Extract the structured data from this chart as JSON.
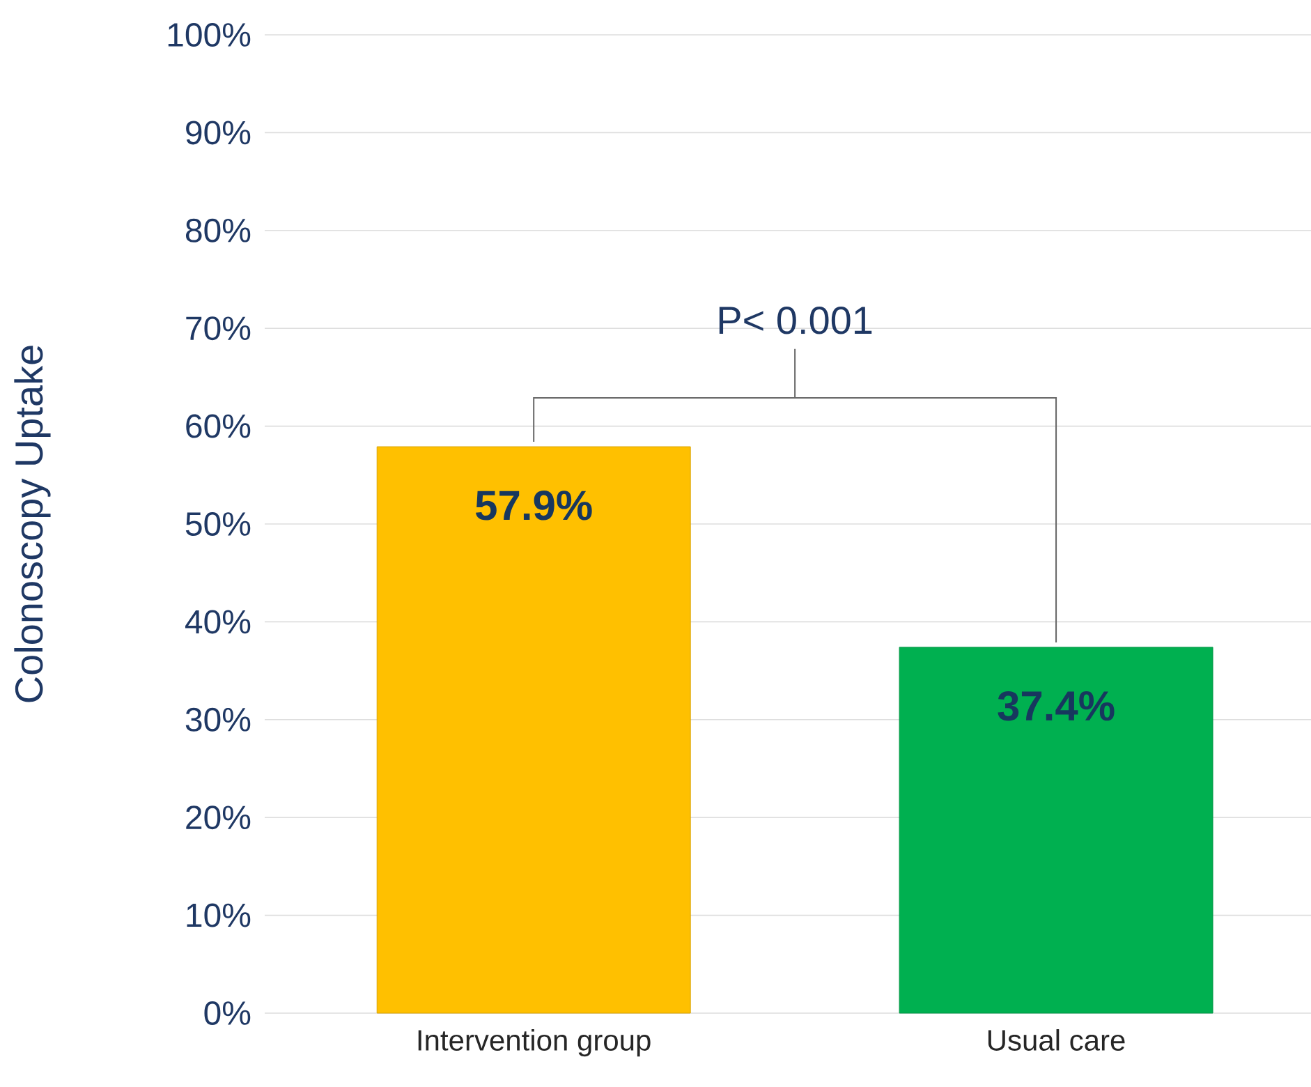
{
  "chart_data": {
    "type": "bar",
    "ylabel": "Colonoscopy Uptake",
    "categories": [
      "Intervention group",
      "Usual care"
    ],
    "values": [
      57.9,
      37.4
    ],
    "colors": [
      "#ffc000",
      "#00b050"
    ],
    "value_labels": [
      "57.9%",
      "37.4%"
    ],
    "ylim": [
      0,
      100
    ],
    "yticks": [
      {
        "value": 0,
        "label": "0%"
      },
      {
        "value": 10,
        "label": "10%"
      },
      {
        "value": 20,
        "label": "20%"
      },
      {
        "value": 30,
        "label": "30%"
      },
      {
        "value": 40,
        "label": "40%"
      },
      {
        "value": 50,
        "label": "50%"
      },
      {
        "value": 60,
        "label": "60%"
      },
      {
        "value": 70,
        "label": "70%"
      },
      {
        "value": 80,
        "label": "80%"
      },
      {
        "value": 90,
        "label": "90%"
      },
      {
        "value": 100,
        "label": "100%"
      }
    ],
    "grid": "y",
    "annotations": [
      "P< 0.001"
    ]
  }
}
